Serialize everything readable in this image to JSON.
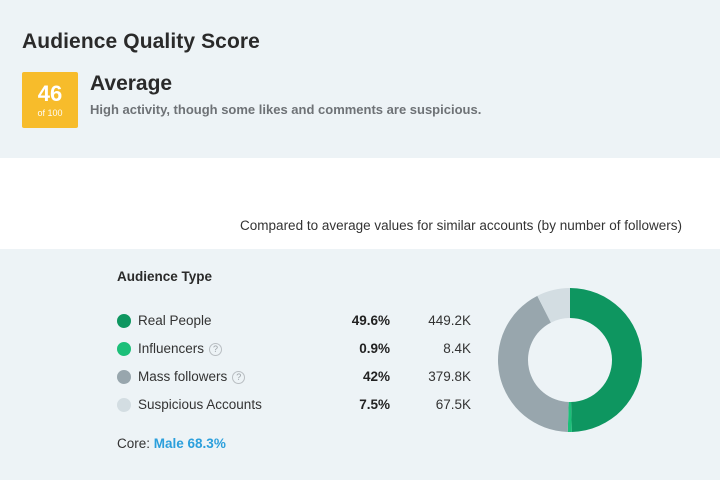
{
  "header": {
    "title": "Audience Quality Score",
    "score": "46",
    "score_scale": "of 100",
    "rating": "Average",
    "description": "High activity, though some likes and comments are suspicious."
  },
  "comparison_note": "Compared to average values for similar accounts (by number of followers)",
  "audience": {
    "title": "Audience Type",
    "rows": [
      {
        "label": "Real People",
        "percent": "49.6%",
        "count": "449.2K",
        "color": "#0e9660",
        "has_help": false
      },
      {
        "label": "Influencers",
        "percent": "0.9%",
        "count": "8.4K",
        "color": "#1cbf79",
        "has_help": true
      },
      {
        "label": "Mass followers",
        "percent": "42%",
        "count": "379.8K",
        "color": "#98a6ad",
        "has_help": true
      },
      {
        "label": "Suspicious Accounts",
        "percent": "7.5%",
        "count": "67.5K",
        "color": "#d3dde2",
        "has_help": false
      }
    ],
    "help_glyph": "?",
    "core_label": "Core:",
    "core_value": "Male 68.3%"
  },
  "chart_data": {
    "type": "pie",
    "categories": [
      "Real People",
      "Influencers",
      "Mass followers",
      "Suspicious Accounts"
    ],
    "values": [
      49.6,
      0.9,
      42,
      7.5
    ],
    "colors": [
      "#0e9660",
      "#1cbf79",
      "#98a6ad",
      "#d3dde2"
    ],
    "donut": true
  }
}
